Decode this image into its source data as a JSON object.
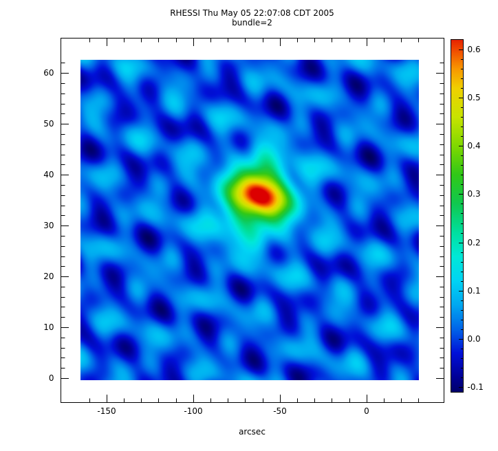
{
  "chart_data": {
    "type": "heatmap",
    "title": "RHESSI Thu May 05 22:07:08 CDT 2005",
    "subtitle": "bundle=2",
    "xlabel": "arcsec",
    "ylabel": "",
    "x_range": [
      -165,
      30.2
    ],
    "y_range": [
      -0.4,
      62.6
    ],
    "x_ticks": [
      -150,
      -100,
      -50,
      0
    ],
    "x_tick_labels": [
      "-150",
      "-100",
      "-50",
      "0"
    ],
    "x_minor_step": 10,
    "y_ticks": [
      0,
      10,
      20,
      30,
      40,
      50,
      60
    ],
    "y_tick_labels": [
      "0",
      "10",
      "20",
      "30",
      "40",
      "50",
      "60"
    ],
    "y_minor_step": 2,
    "grid": false,
    "legend": "none",
    "colorbar": {
      "position": "right",
      "min": -0.11,
      "max": 0.62,
      "ticks": [
        -0.1,
        0.0,
        0.1,
        0.2,
        0.3,
        0.4,
        0.5,
        0.6
      ],
      "tick_labels": [
        "-0.1",
        "0.0",
        "0.1",
        "0.2",
        "0.3",
        "0.4",
        "0.5",
        "0.6"
      ],
      "minor_step": 0.02
    },
    "colormap": [
      [
        -0.13,
        "#00004f"
      ],
      [
        -0.08,
        "#000096"
      ],
      [
        -0.03,
        "#0010d8"
      ],
      [
        0.02,
        "#0064e8"
      ],
      [
        0.07,
        "#00a8f0"
      ],
      [
        0.12,
        "#00d4f4"
      ],
      [
        0.17,
        "#00e8d8"
      ],
      [
        0.22,
        "#00e0a0"
      ],
      [
        0.28,
        "#10c850"
      ],
      [
        0.34,
        "#30c818"
      ],
      [
        0.4,
        "#80d800"
      ],
      [
        0.46,
        "#c8e400"
      ],
      [
        0.52,
        "#f0d000"
      ],
      [
        0.56,
        "#f89800"
      ],
      [
        0.6,
        "#f04800"
      ],
      [
        0.64,
        "#dc0000"
      ]
    ],
    "background": {
      "base": 0.012,
      "waves": [
        {
          "amp": 0.038,
          "kx": 0.085,
          "ky": 0.5,
          "phase": 1.7
        },
        {
          "amp": 0.034,
          "kx": 0.155,
          "ky": -0.42,
          "phase": 4.1
        },
        {
          "amp": 0.027,
          "kx": 0.27,
          "ky": 0.18,
          "phase": 2.6
        },
        {
          "amp": 0.021,
          "kx": 0.045,
          "ky": 0.85,
          "phase": 5.5
        },
        {
          "amp": 0.015,
          "kx": 0.36,
          "ky": 0.65,
          "phase": 0.8
        }
      ]
    },
    "sources": [
      {
        "x": -61,
        "y": 36.3,
        "sx": 10,
        "sy": 3.5,
        "peak": 0.5
      },
      {
        "x": -63,
        "y": 35.0,
        "sx": 19,
        "sy": 6.5,
        "peak": 0.17
      },
      {
        "x": -76,
        "y": 31.5,
        "sx": 7,
        "sy": 2.6,
        "peak": 0.09
      }
    ],
    "peak_location": {
      "x": -61,
      "y": 36,
      "value": 0.62
    }
  }
}
